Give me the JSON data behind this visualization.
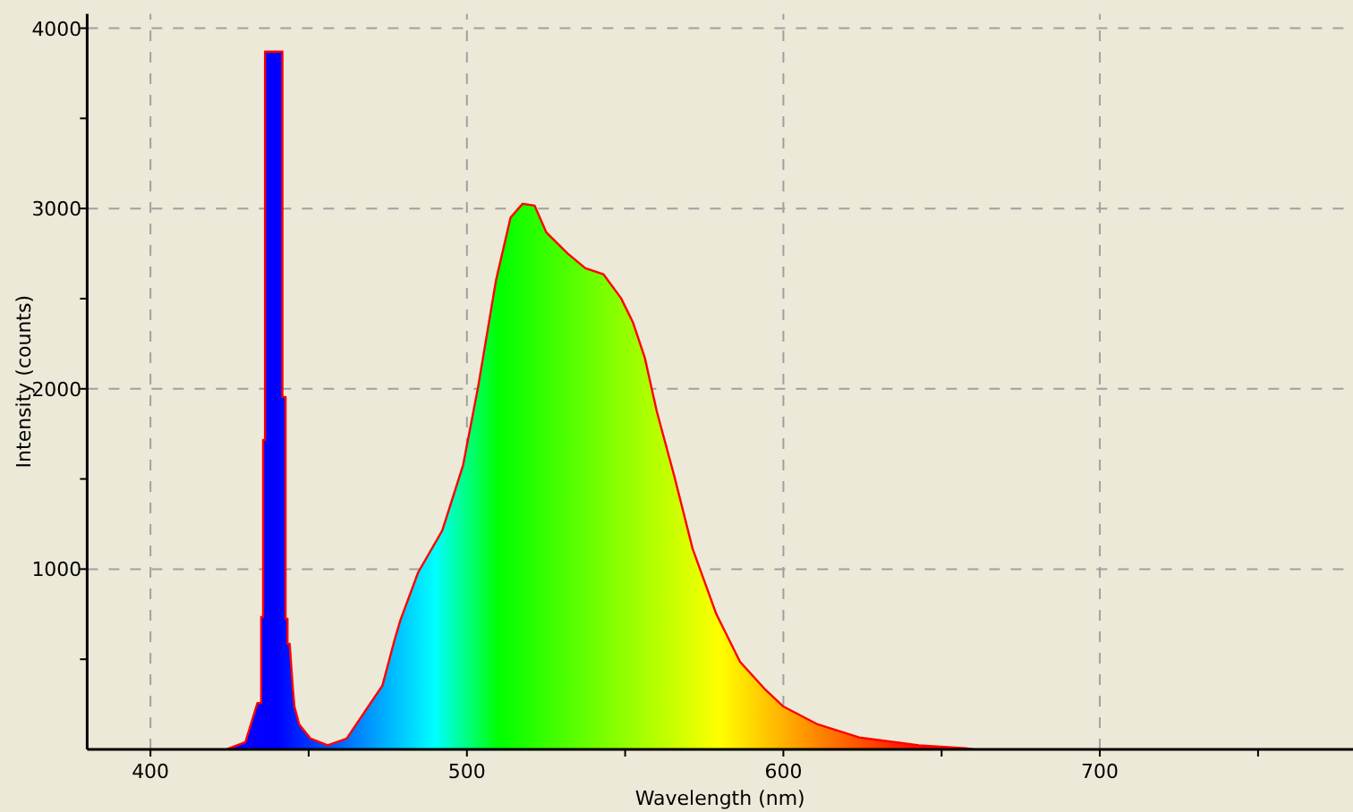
{
  "chart_data": {
    "type": "area",
    "xlabel": "Wavelength (nm)",
    "ylabel": "Intensity (counts)",
    "xlim": [
      380,
      780
    ],
    "ylim": [
      0,
      4080
    ],
    "xticks": [
      400,
      {
        "value": 450,
        "label": null
      },
      500,
      {
        "value": 550,
        "label": null
      },
      600,
      {
        "value": 650,
        "label": null
      },
      700,
      {
        "value": 750,
        "label": null
      }
    ],
    "yticks": [
      {
        "value": 500,
        "label": null
      },
      1000,
      {
        "value": 1500,
        "label": null
      },
      2000,
      {
        "value": 2500,
        "label": null
      },
      3000,
      {
        "value": 3500,
        "label": null
      },
      4000
    ],
    "grid": true,
    "line_style": "solid",
    "marker": "none",
    "series": [
      {
        "color": "#ff0000",
        "x": [
          424,
          430,
          433.8,
          435,
          435,
          435.6,
          435.6,
          436.2,
          436.2,
          441.7,
          441.7,
          442.7,
          442.7,
          443.3,
          443.3,
          444,
          445,
          445.5,
          447,
          450.6,
          456,
          462,
          469.6,
          473.3,
          477.1,
          479,
          484.6,
          492.2,
          498.8,
          503.5,
          509.2,
          513.8,
          517.6,
          521.4,
          525.1,
          531.8,
          537.4,
          543.1,
          548.7,
          552.4,
          556.2,
          560,
          565.6,
          571.3,
          578.8,
          586.3,
          594,
          600,
          610.8,
          624,
          642.8,
          657.5,
          660
        ],
        "values": [
          0,
          40,
          257,
          257,
          734,
          734,
          1716,
          1716,
          3870,
          3870,
          1955,
          1955,
          724,
          724,
          585,
          585,
          337,
          238,
          139,
          60,
          23,
          60,
          258,
          354,
          605,
          717,
          982,
          1213,
          1577,
          2007,
          2602,
          2950,
          3026,
          3016,
          2867,
          2751,
          2669,
          2636,
          2503,
          2371,
          2173,
          1875,
          1511,
          1114,
          751,
          486,
          337,
          238,
          139,
          66,
          23,
          7,
          0
        ]
      }
    ]
  }
}
